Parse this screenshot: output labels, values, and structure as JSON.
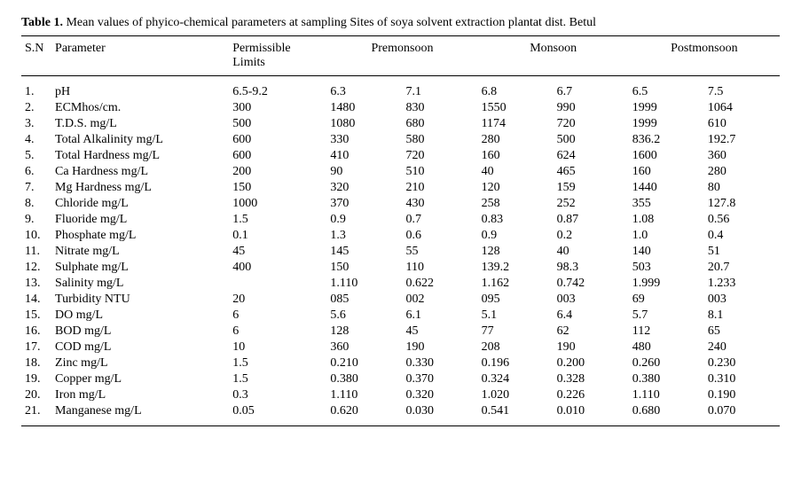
{
  "title_bold": "Table 1.",
  "title_rest": " Mean values of phyico-chemical parameters at sampling Sites of soya solvent extraction plantat dist. Betul",
  "headers": {
    "sn": "S.N",
    "param": "Parameter",
    "limits": "Permissible Limits",
    "pre": "Premonsoon",
    "mon": "Monsoon",
    "post": "Postmonsoon"
  },
  "rows": [
    {
      "sn": "1.",
      "param": "pH",
      "limits": "6.5-9.2",
      "preA": "6.3",
      "preB": "7.1",
      "monA": "6.8",
      "monB": "6.7",
      "postA": "6.5",
      "postB": "7.5"
    },
    {
      "sn": "2.",
      "param": "ECMhos/cm.",
      "limits": "300",
      "preA": "1480",
      "preB": "830",
      "monA": "1550",
      "monB": "990",
      "postA": "1999",
      "postB": "1064"
    },
    {
      "sn": "3.",
      "param": "T.D.S. mg/L",
      "limits": "500",
      "preA": "1080",
      "preB": "680",
      "monA": "1174",
      "monB": "720",
      "postA": "1999",
      "postB": "610"
    },
    {
      "sn": "4.",
      "param": "Total Alkalinity mg/L",
      "limits": "600",
      "preA": "330",
      "preB": "580",
      "monA": "280",
      "monB": "500",
      "postA": "836.2",
      "postB": "192.7"
    },
    {
      "sn": "5.",
      "param": "Total Hardness mg/L",
      "limits": "600",
      "preA": "410",
      "preB": "720",
      "monA": "160",
      "monB": "624",
      "postA": "1600",
      "postB": "360"
    },
    {
      "sn": "6.",
      "param": "Ca Hardness mg/L",
      "limits": "200",
      "preA": "90",
      "preB": "510",
      "monA": "40",
      "monB": "465",
      "postA": "160",
      "postB": "280"
    },
    {
      "sn": "7.",
      "param": "Mg Hardness mg/L",
      "limits": "150",
      "preA": "320",
      "preB": "210",
      "monA": "120",
      "monB": "159",
      "postA": "1440",
      "postB": "80"
    },
    {
      "sn": "8.",
      "param": "Chloride mg/L",
      "limits": "1000",
      "preA": "370",
      "preB": "430",
      "monA": "258",
      "monB": "252",
      "postA": "355",
      "postB": "127.8"
    },
    {
      "sn": "9.",
      "param": "Fluoride mg/L",
      "limits": "1.5",
      "preA": "0.9",
      "preB": "0.7",
      "monA": "0.83",
      "monB": "0.87",
      "postA": "1.08",
      "postB": "0.56"
    },
    {
      "sn": "10.",
      "param": "Phosphate mg/L",
      "limits": "0.1",
      "preA": "1.3",
      "preB": "0.6",
      "monA": "0.9",
      "monB": "0.2",
      "postA": "1.0",
      "postB": "0.4"
    },
    {
      "sn": "11.",
      "param": "Nitrate mg/L",
      "limits": "45",
      "preA": "145",
      "preB": "55",
      "monA": "128",
      "monB": "40",
      "postA": "140",
      "postB": "51"
    },
    {
      "sn": "12.",
      "param": "Sulphate mg/L",
      "limits": "400",
      "preA": "150",
      "preB": "110",
      "monA": "139.2",
      "monB": "98.3",
      "postA": "503",
      "postB": "20.7"
    },
    {
      "sn": "13.",
      "param": "Salinity mg/L",
      "limits": "",
      "preA": "1.110",
      "preB": "0.622",
      "monA": "1.162",
      "monB": "0.742",
      "postA": "1.999",
      "postB": "1.233"
    },
    {
      "sn": "14.",
      "param": "Turbidity NTU",
      "limits": "20",
      "preA": "085",
      "preB": "002",
      "monA": "095",
      "monB": "003",
      "postA": "69",
      "postB": "003"
    },
    {
      "sn": "15.",
      "param": "DO mg/L",
      "limits": "6",
      "preA": "5.6",
      "preB": "6.1",
      "monA": "5.1",
      "monB": "6.4",
      "postA": "5.7",
      "postB": "8.1"
    },
    {
      "sn": "16.",
      "param": "BOD mg/L",
      "limits": "6",
      "preA": "128",
      "preB": "45",
      "monA": "77",
      "monB": "62",
      "postA": "112",
      "postB": "65"
    },
    {
      "sn": "17.",
      "param": "COD mg/L",
      "limits": "10",
      "preA": "360",
      "preB": "190",
      "monA": "208",
      "monB": "190",
      "postA": "480",
      "postB": "240"
    },
    {
      "sn": "18.",
      "param": "Zinc mg/L",
      "limits": "1.5",
      "preA": "0.210",
      "preB": "0.330",
      "monA": "0.196",
      "monB": "0.200",
      "postA": "0.260",
      "postB": "0.230"
    },
    {
      "sn": "19.",
      "param": "Copper mg/L",
      "limits": "1.5",
      "preA": "0.380",
      "preB": "0.370",
      "monA": "0.324",
      "monB": "0.328",
      "postA": "0.380",
      "postB": "0.310"
    },
    {
      "sn": "20.",
      "param": "Iron mg/L",
      "limits": "0.3",
      "preA": "1.110",
      "preB": "0.320",
      "monA": "1.020",
      "monB": "0.226",
      "postA": "1.110",
      "postB": "0.190"
    },
    {
      "sn": "21.",
      "param": "Manganese mg/L",
      "limits": "0.05",
      "preA": "0.620",
      "preB": "0.030",
      "monA": "0.541",
      "monB": "0.010",
      "postA": "0.680",
      "postB": "0.070"
    }
  ]
}
